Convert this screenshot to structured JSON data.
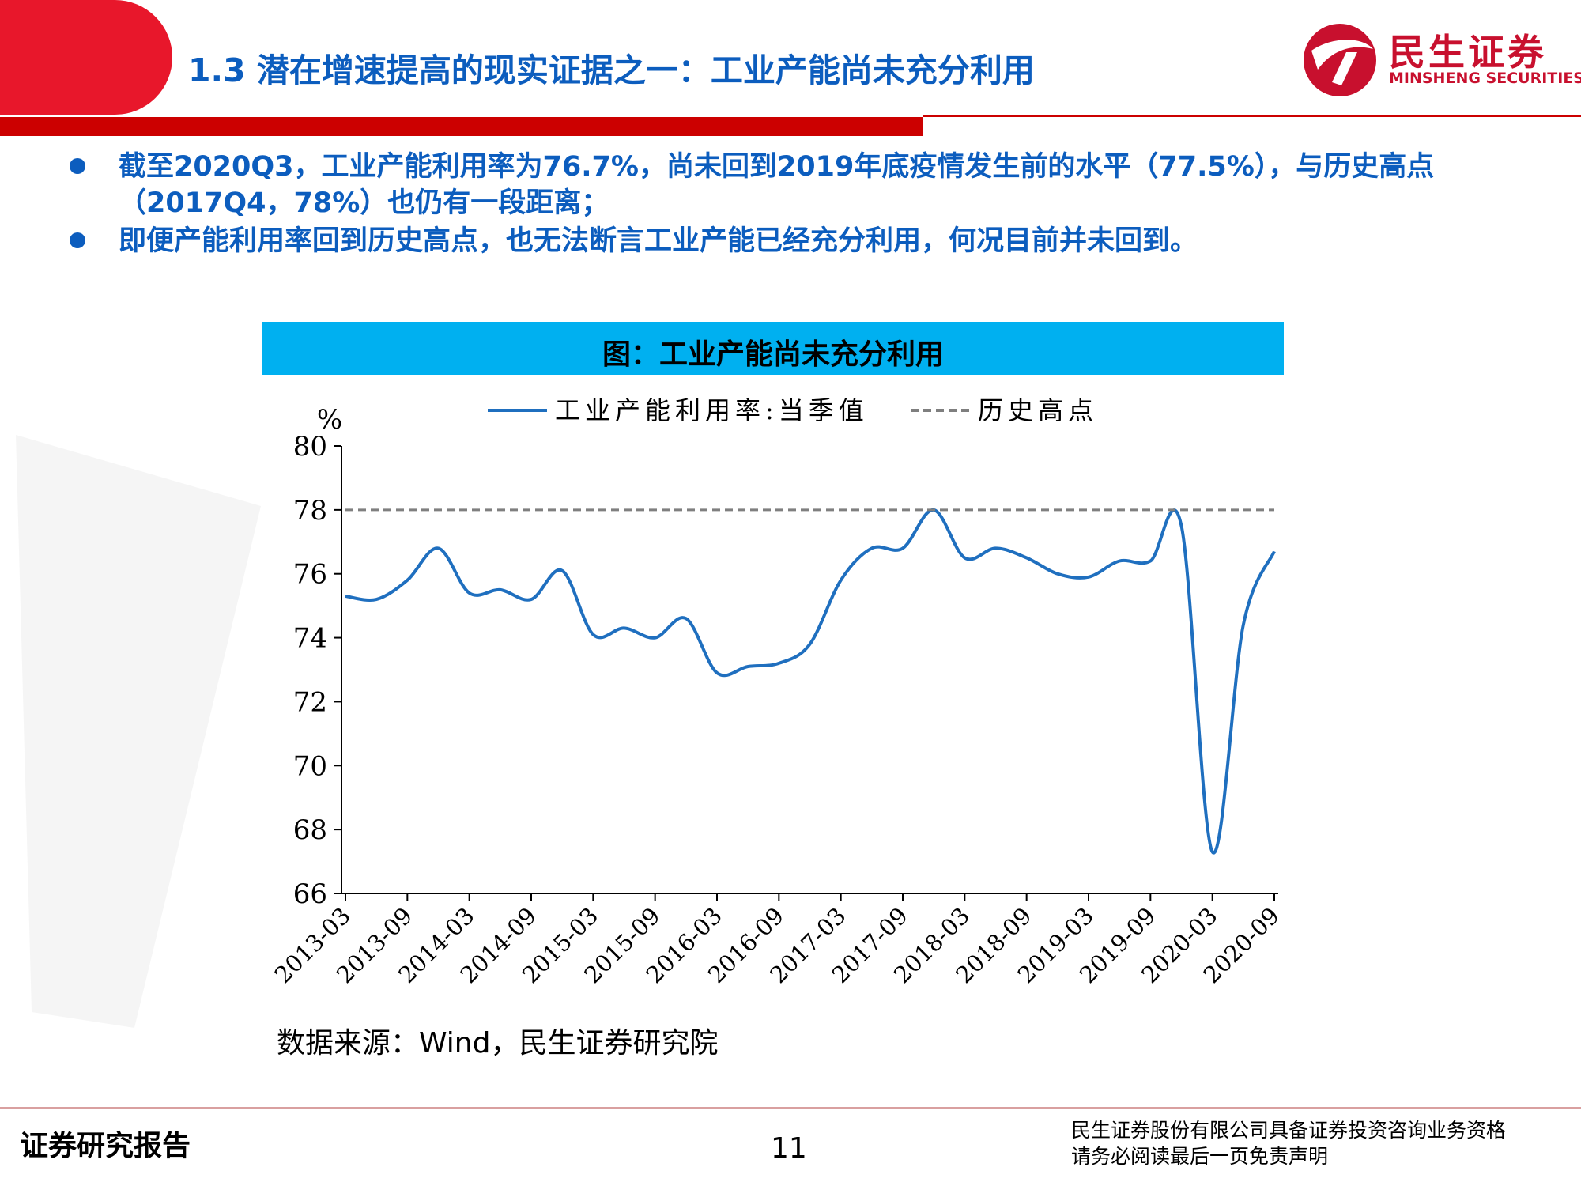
{
  "header": {
    "title": "1.3 潜在增速提高的现实证据之一：工业产能尚未充分利用",
    "logo_name": "民生证券",
    "logo_en": "MINSHENG SECURITIES"
  },
  "bullets": [
    "截至2020Q3，工业产能利用率为76.7%，尚未回到2019年底疫情发生前的水平（77.5%），与历史高点（2017Q4，78%）也仍有一段距离；",
    "即便产能利用率回到历史高点，也无法断言工业产能已经充分利用，何况目前并未回到。"
  ],
  "chart_banner": "图：工业产能尚未充分利用",
  "chart_data": {
    "type": "line",
    "unit_label": "%",
    "ylim": [
      66,
      80
    ],
    "y_ticks": [
      66,
      68,
      70,
      72,
      74,
      76,
      78,
      80
    ],
    "x_tick_labels": [
      "2013-03",
      "2013-09",
      "2014-03",
      "2014-09",
      "2015-03",
      "2015-09",
      "2016-03",
      "2016-09",
      "2017-03",
      "2017-09",
      "2018-03",
      "2018-09",
      "2019-03",
      "2019-09",
      "2020-03",
      "2020-09"
    ],
    "categories": [
      "2013-03",
      "2013-06",
      "2013-09",
      "2013-12",
      "2014-03",
      "2014-06",
      "2014-09",
      "2014-12",
      "2015-03",
      "2015-06",
      "2015-09",
      "2015-12",
      "2016-03",
      "2016-06",
      "2016-09",
      "2016-12",
      "2017-03",
      "2017-06",
      "2017-09",
      "2017-12",
      "2018-03",
      "2018-06",
      "2018-09",
      "2018-12",
      "2019-03",
      "2019-06",
      "2019-09",
      "2019-12",
      "2020-03",
      "2020-06",
      "2020-09"
    ],
    "series": [
      {
        "name": "工业产能利用率:当季值",
        "color": "#1f6fbf",
        "style": "solid",
        "values": [
          75.3,
          75.2,
          75.8,
          76.8,
          75.4,
          75.5,
          75.2,
          76.1,
          74.1,
          74.3,
          74.0,
          74.6,
          72.9,
          73.1,
          73.2,
          73.8,
          75.8,
          76.8,
          76.8,
          78.0,
          76.5,
          76.8,
          76.5,
          76.0,
          75.9,
          76.4,
          76.4,
          77.5,
          67.3,
          74.4,
          76.7
        ]
      },
      {
        "name": "历史高点",
        "color": "#7f7f7f",
        "style": "dashed",
        "values": [
          78,
          78,
          78,
          78,
          78,
          78,
          78,
          78,
          78,
          78,
          78,
          78,
          78,
          78,
          78,
          78,
          78,
          78,
          78,
          78,
          78,
          78,
          78,
          78,
          78,
          78,
          78,
          78,
          78,
          78,
          78
        ]
      }
    ],
    "legend_position": "top"
  },
  "source": "数据来源：Wind，民生证券研究院",
  "footer": {
    "left": "证券研究报告",
    "page": "11",
    "right_line1": "民生证券股份有限公司具备证券投资咨询业务资格",
    "right_line2": "请务必阅读最后一页免责声明"
  }
}
